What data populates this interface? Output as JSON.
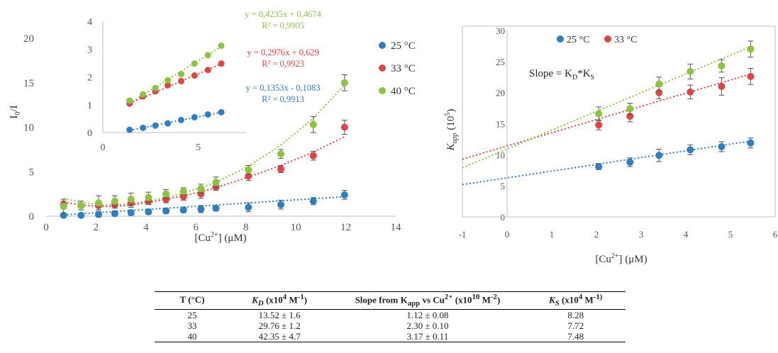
{
  "chart_data": [
    {
      "id": "left",
      "type": "scatter",
      "xlabel_pre": "[Cu",
      "xlabel_sup": "2+",
      "xlabel_post": "] (μM)",
      "ylabel_main": "I",
      "ylabel_sub": "0",
      "ylabel_post": "/I",
      "xlim": [
        0,
        14
      ],
      "ylim": [
        0,
        20
      ],
      "xticks": [
        "0",
        "2",
        "4",
        "6",
        "8",
        "10",
        "12",
        "14"
      ],
      "yticks": [
        "0",
        "5",
        "10",
        "15",
        "20"
      ],
      "legend_position": "right",
      "series": [
        {
          "name": "25 °C",
          "color": "#2f7dc2",
          "trend_color": "#2f7dc2",
          "x": [
            0.7,
            1.4,
            2.1,
            2.75,
            3.4,
            4.1,
            4.8,
            5.5,
            6.2,
            6.8,
            8.1,
            9.4,
            10.7,
            11.95
          ],
          "y": [
            0.1,
            0.1,
            0.2,
            0.3,
            0.4,
            0.5,
            0.6,
            0.7,
            0.8,
            0.9,
            1.0,
            1.3,
            1.7,
            2.4
          ],
          "err": [
            0.2,
            0.2,
            0.3,
            0.3,
            0.3,
            0.3,
            0.3,
            0.3,
            0.4,
            0.3,
            0.5,
            0.5,
            0.4,
            0.5
          ],
          "fit_x": [
            0.7,
            12.0
          ],
          "fit_y": [
            0.15,
            2.2
          ]
        },
        {
          "name": "33 °C",
          "color": "#e04545",
          "trend_color": "#e04545",
          "x": [
            0.7,
            1.4,
            2.1,
            2.75,
            3.4,
            4.1,
            4.8,
            5.5,
            6.2,
            6.8,
            8.1,
            9.4,
            10.7,
            11.95
          ],
          "y": [
            1.3,
            1.2,
            1.2,
            1.3,
            1.5,
            1.7,
            1.9,
            2.2,
            2.5,
            3.3,
            4.5,
            5.3,
            6.8,
            10.0
          ],
          "err": [
            0.4,
            0.3,
            0.5,
            0.4,
            0.5,
            0.4,
            0.4,
            0.4,
            0.5,
            0.4,
            0.5,
            0.4,
            0.5,
            0.8
          ],
          "fit_x": [
            0.7,
            1.4,
            2.1,
            2.75,
            3.4,
            4.1,
            4.8,
            5.5,
            6.2,
            6.8,
            8.1,
            9.4,
            10.7,
            12.0
          ],
          "fit_y": [
            1.6,
            1.25,
            1.1,
            1.1,
            1.25,
            1.55,
            1.9,
            2.3,
            2.75,
            3.2,
            4.4,
            5.7,
            7.2,
            9.0
          ]
        },
        {
          "name": "40 °C",
          "color": "#8cc43f",
          "trend_color": "#8cc43f",
          "x": [
            0.7,
            1.4,
            2.1,
            2.75,
            3.4,
            4.1,
            4.8,
            5.5,
            6.2,
            6.8,
            8.1,
            9.4,
            10.7,
            11.95
          ],
          "y": [
            1.1,
            1.2,
            1.5,
            1.7,
            1.9,
            2.1,
            2.5,
            2.8,
            3.1,
            3.8,
            5.2,
            7.0,
            10.3,
            15.0
          ],
          "err": [
            0.8,
            0.5,
            0.8,
            0.6,
            0.7,
            0.6,
            0.5,
            0.4,
            0.5,
            0.6,
            0.5,
            0.5,
            0.9,
            0.9
          ],
          "fit_x": [
            0.7,
            1.4,
            2.1,
            2.75,
            3.4,
            4.1,
            4.8,
            5.5,
            6.2,
            6.8,
            8.1,
            9.4,
            10.7,
            12.0
          ],
          "fit_y": [
            2.0,
            1.55,
            1.3,
            1.25,
            1.4,
            1.7,
            2.1,
            2.6,
            3.2,
            3.8,
            5.6,
            8.0,
            11.0,
            14.9
          ]
        }
      ]
    },
    {
      "id": "inset",
      "type": "scatter",
      "xlim": [
        0,
        7.5
      ],
      "ylim": [
        0,
        4
      ],
      "xticks": [
        "0",
        "5"
      ],
      "xtick_values": [
        0,
        5
      ],
      "yticks": [
        "0",
        "1",
        "2",
        "3",
        "4"
      ],
      "series": [
        {
          "name": "25 °C",
          "color": "#2f7dc2",
          "x": [
            1.4,
            2.1,
            2.75,
            3.4,
            4.1,
            4.8,
            5.5,
            6.2
          ],
          "y": [
            0.1,
            0.17,
            0.25,
            0.33,
            0.45,
            0.55,
            0.65,
            0.73
          ],
          "fit_x": [
            1.4,
            6.2
          ],
          "fit_y": [
            0.08,
            0.73
          ],
          "equation": "y = 0,1353x - 0,1083",
          "r2": "R² = 0,9913"
        },
        {
          "name": "33 °C",
          "color": "#e04545",
          "x": [
            1.4,
            2.1,
            2.75,
            3.4,
            4.1,
            4.8,
            5.5,
            6.2
          ],
          "y": [
            1.04,
            1.3,
            1.48,
            1.7,
            1.85,
            2.05,
            2.25,
            2.48
          ],
          "fit_x": [
            1.4,
            6.2
          ],
          "fit_y": [
            1.05,
            2.47
          ],
          "equation": "y = 0,2976x + 0,629",
          "r2": "R² = 0,9923"
        },
        {
          "name": "40 °C",
          "color": "#8cc43f",
          "x": [
            1.4,
            2.1,
            2.75,
            3.4,
            4.1,
            4.8,
            5.5,
            6.2
          ],
          "y": [
            1.15,
            1.37,
            1.6,
            1.88,
            2.1,
            2.48,
            2.78,
            3.12
          ],
          "fit_x": [
            1.4,
            6.2
          ],
          "fit_y": [
            1.06,
            3.09
          ],
          "equation": "y = 0,4235x + 0,4674",
          "r2": "R² = 0,9905"
        }
      ]
    },
    {
      "id": "right",
      "type": "scatter",
      "xlabel_pre": "[Cu",
      "xlabel_sup": "2+",
      "xlabel_post": "] (μM)",
      "ylabel_main": "K",
      "ylabel_sub": "app",
      "ylabel_post": " (10",
      "ylabel_sup": "5",
      "ylabel_end": ")",
      "annotation_pre": "Slope = K",
      "annotation_sub1": "D",
      "annotation_mid": "*K",
      "annotation_sub2": "S",
      "xlim": [
        -1,
        6
      ],
      "ylim": [
        0,
        30
      ],
      "xticks": [
        "-1",
        "0",
        "1",
        "2",
        "3",
        "4",
        "5",
        "6"
      ],
      "yticks": [
        "0",
        "5",
        "10",
        "15",
        "20",
        "25",
        "30"
      ],
      "legend_position": "top-left",
      "series": [
        {
          "name": "25 °C",
          "color": "#2f7dc2",
          "x": [
            2.05,
            2.75,
            3.4,
            4.1,
            4.8,
            5.45
          ],
          "y": [
            8.1,
            8.8,
            9.9,
            10.8,
            11.3,
            11.9
          ],
          "err": [
            0.5,
            0.7,
            1.0,
            0.8,
            0.8,
            0.8
          ],
          "fit_x": [
            -1,
            5.45
          ],
          "fit_y": [
            5.2,
            12.2
          ]
        },
        {
          "name": "33 °C",
          "color": "#e04545",
          "x": [
            2.05,
            2.75,
            3.4,
            4.1,
            4.8,
            5.45
          ],
          "y": [
            14.8,
            16.2,
            20.0,
            20.1,
            21.0,
            22.6
          ],
          "err": [
            0.8,
            0.9,
            1.0,
            1.1,
            1.4,
            1.3
          ],
          "fit_x": [
            -1,
            5.45
          ],
          "fit_y": [
            9.3,
            23.0
          ]
        },
        {
          "name": "40 °C",
          "color": "#8cc43f",
          "x": [
            2.05,
            2.75,
            3.4,
            4.1,
            4.8,
            5.45
          ],
          "y": [
            16.6,
            17.4,
            21.4,
            23.4,
            24.3,
            27.0
          ],
          "err": [
            1.1,
            0.9,
            1.1,
            1.2,
            1.0,
            1.3
          ],
          "fit_x": [
            -1,
            5.45
          ],
          "fit_y": [
            7.9,
            27.4
          ]
        }
      ]
    },
    {
      "id": "table",
      "type": "table",
      "rows": [
        [
          "25",
          "13.52 ± 1.6",
          "1.12 ± 0.08",
          "8.28"
        ],
        [
          "33",
          "29.76 ± 1.2",
          "2.30 ± 0.10",
          "7.72"
        ],
        [
          "40",
          "42.35 ± 4.7",
          "3.17 ± 0.11",
          "7.48"
        ]
      ]
    }
  ],
  "table": {
    "h0": "T (°C)",
    "h1_main": "K",
    "h1_sub": "D",
    "h1_rest": " (x10",
    "h1_sup1": "4",
    "h1_unit": " M",
    "h1_sup2": "-1",
    "h1_end": ")",
    "h2_main": "Slope from K",
    "h2_sub": "app",
    "h2_rest": " vs Cu",
    "h2_sup1": "2+",
    "h2_mid": " (x10",
    "h2_sup2": "10",
    "h2_unit": " M",
    "h2_sup3": "-2",
    "h2_end": ")",
    "h3_main": "K",
    "h3_sub": "S",
    "h3_rest": " (x10",
    "h3_sup1": "4",
    "h3_unit": " M",
    "h3_sup2": "-1)",
    "h3_end": ""
  }
}
